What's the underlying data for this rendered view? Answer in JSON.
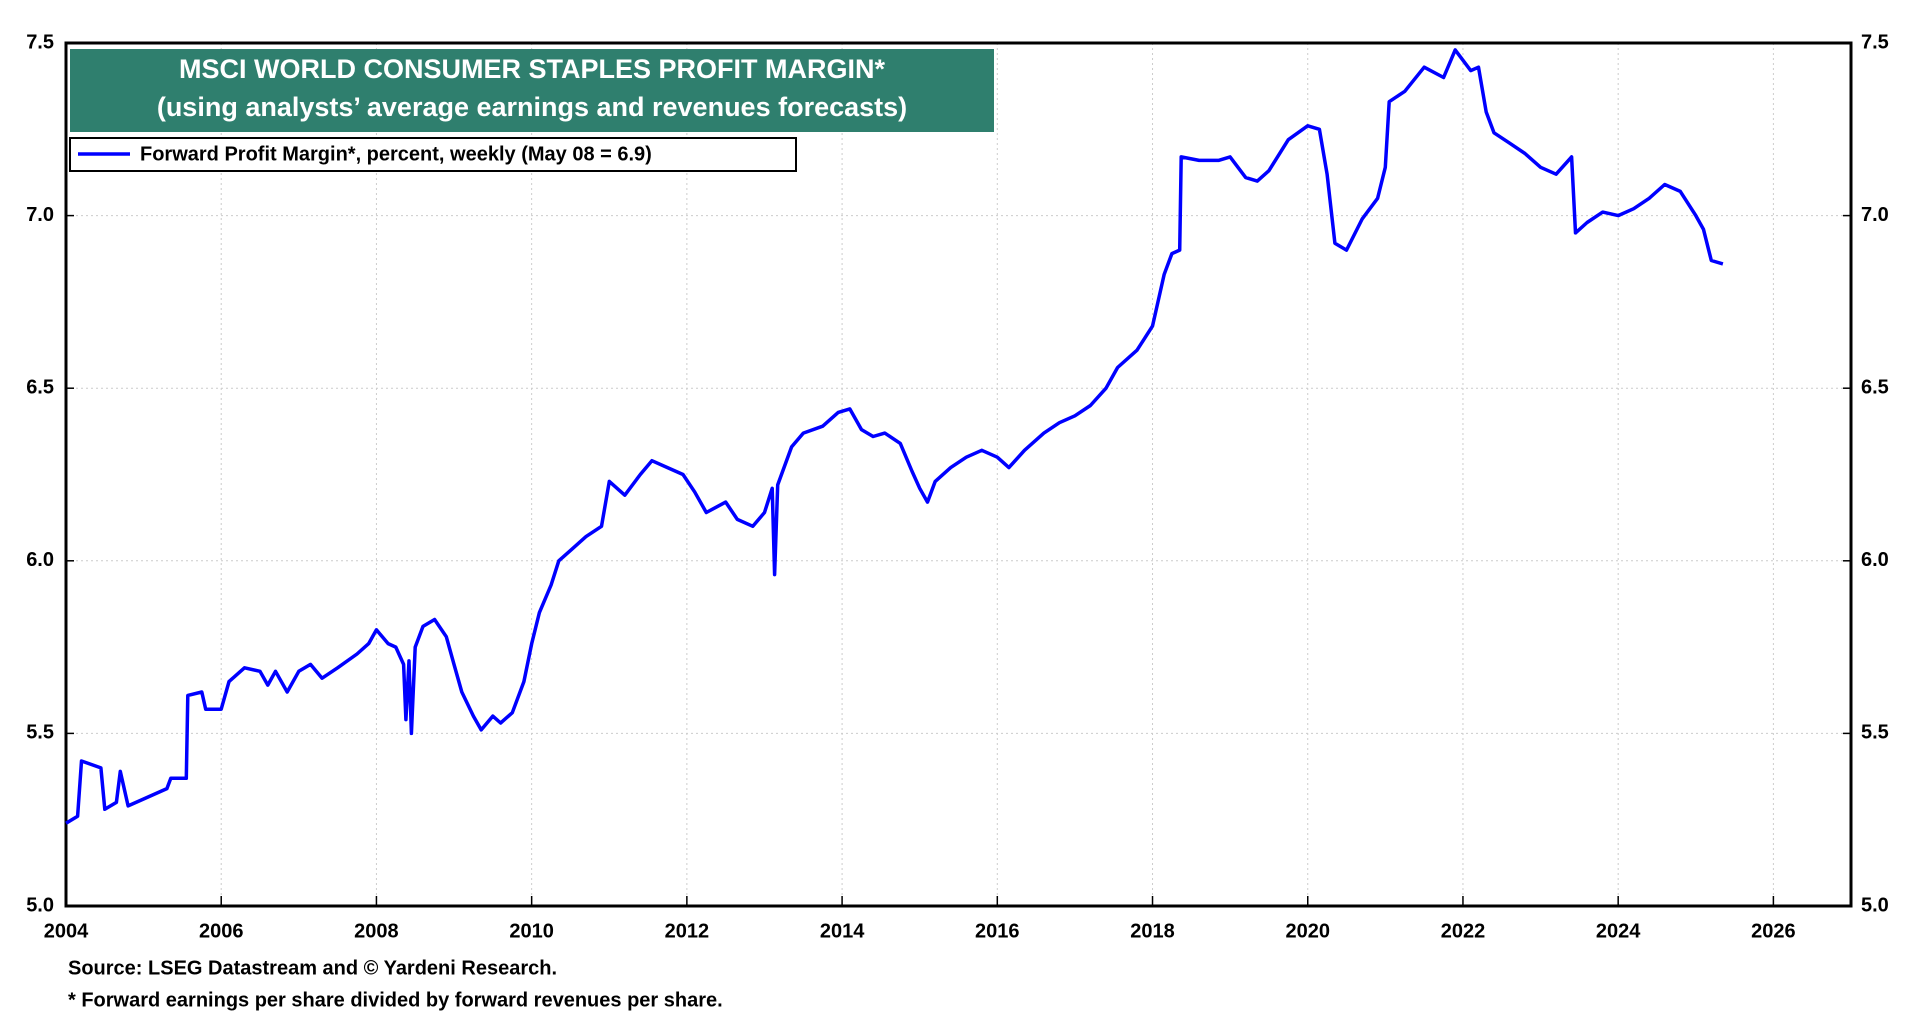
{
  "chart_data": {
    "type": "line",
    "title": "MSCI WORLD CONSUMER STAPLES PROFIT MARGIN*",
    "subtitle": "(using analysts’ average earnings and revenues forecasts)",
    "source": "Source: LSEG Datastream and © Yardeni Research.",
    "note": "* Forward earnings per share divided by forward revenues per share.",
    "legend_position": "upper left",
    "grid": true,
    "x": [
      2004.0,
      2004.15,
      2004.2,
      2004.45,
      2004.5,
      2004.65,
      2004.7,
      2004.8,
      2005.0,
      2005.3,
      2005.35,
      2005.55,
      2005.57,
      2005.75,
      2005.8,
      2006.0,
      2006.1,
      2006.3,
      2006.5,
      2006.6,
      2006.7,
      2006.85,
      2007.0,
      2007.15,
      2007.3,
      2007.5,
      2007.75,
      2007.9,
      2008.0,
      2008.15,
      2008.25,
      2008.35,
      2008.38,
      2008.42,
      2008.45,
      2008.5,
      2008.6,
      2008.75,
      2008.9,
      2009.0,
      2009.1,
      2009.25,
      2009.35,
      2009.5,
      2009.6,
      2009.75,
      2009.9,
      2010.0,
      2010.1,
      2010.25,
      2010.35,
      2010.5,
      2010.7,
      2010.9,
      2011.0,
      2011.2,
      2011.4,
      2011.55,
      2011.75,
      2011.95,
      2012.1,
      2012.25,
      2012.5,
      2012.65,
      2012.85,
      2013.0,
      2013.1,
      2013.13,
      2013.17,
      2013.35,
      2013.5,
      2013.75,
      2013.95,
      2014.1,
      2014.25,
      2014.4,
      2014.55,
      2014.75,
      2014.9,
      2015.0,
      2015.1,
      2015.2,
      2015.4,
      2015.6,
      2015.8,
      2016.0,
      2016.15,
      2016.35,
      2016.6,
      2016.8,
      2017.0,
      2017.2,
      2017.4,
      2017.55,
      2017.8,
      2018.0,
      2018.15,
      2018.25,
      2018.35,
      2018.37,
      2018.6,
      2018.85,
      2019.0,
      2019.2,
      2019.35,
      2019.5,
      2019.75,
      2020.0,
      2020.15,
      2020.25,
      2020.35,
      2020.5,
      2020.7,
      2020.9,
      2021.0,
      2021.05,
      2021.25,
      2021.5,
      2021.75,
      2021.9,
      2022.1,
      2022.2,
      2022.3,
      2022.4,
      2022.6,
      2022.8,
      2023.0,
      2023.2,
      2023.4,
      2023.45,
      2023.6,
      2023.8,
      2024.0,
      2024.2,
      2024.4,
      2024.6,
      2024.8,
      2025.0,
      2025.1,
      2025.2,
      2025.35
    ],
    "series": [
      {
        "name": "Forward Profit Margin*, percent, weekly (May 08 = 6.9)",
        "color": "#0000ff",
        "values": [
          5.24,
          5.26,
          5.42,
          5.4,
          5.28,
          5.3,
          5.39,
          5.29,
          5.31,
          5.34,
          5.37,
          5.37,
          5.61,
          5.62,
          5.57,
          5.57,
          5.65,
          5.69,
          5.68,
          5.64,
          5.68,
          5.62,
          5.68,
          5.7,
          5.66,
          5.69,
          5.73,
          5.76,
          5.8,
          5.76,
          5.75,
          5.7,
          5.54,
          5.71,
          5.5,
          5.75,
          5.81,
          5.83,
          5.78,
          5.7,
          5.62,
          5.55,
          5.51,
          5.55,
          5.53,
          5.56,
          5.65,
          5.76,
          5.85,
          5.93,
          6.0,
          6.03,
          6.07,
          6.1,
          6.23,
          6.19,
          6.25,
          6.29,
          6.27,
          6.25,
          6.2,
          6.14,
          6.17,
          6.12,
          6.1,
          6.14,
          6.21,
          5.96,
          6.22,
          6.33,
          6.37,
          6.39,
          6.43,
          6.44,
          6.38,
          6.36,
          6.37,
          6.34,
          6.26,
          6.21,
          6.17,
          6.23,
          6.27,
          6.3,
          6.32,
          6.3,
          6.27,
          6.32,
          6.37,
          6.4,
          6.42,
          6.45,
          6.5,
          6.56,
          6.61,
          6.68,
          6.83,
          6.89,
          6.9,
          7.17,
          7.16,
          7.16,
          7.17,
          7.11,
          7.1,
          7.13,
          7.22,
          7.26,
          7.25,
          7.12,
          6.92,
          6.9,
          6.99,
          7.05,
          7.14,
          7.33,
          7.36,
          7.43,
          7.4,
          7.48,
          7.42,
          7.43,
          7.3,
          7.24,
          7.21,
          7.18,
          7.14,
          7.12,
          7.17,
          6.95,
          6.98,
          7.01,
          7.0,
          7.02,
          7.05,
          7.09,
          7.07,
          7.0,
          6.96,
          6.87,
          6.86
        ]
      }
    ],
    "xlim": [
      2004,
      2027
    ],
    "xticks": [
      2004,
      2006,
      2008,
      2010,
      2012,
      2014,
      2016,
      2018,
      2020,
      2022,
      2024,
      2026
    ],
    "ylim": [
      5,
      7.5
    ],
    "yticks": [
      {
        "value": 5,
        "label": "5.0"
      },
      {
        "value": 5.5,
        "label": "5.5"
      },
      {
        "value": 6,
        "label": "6.0"
      },
      {
        "value": 6.5,
        "label": "6.5"
      },
      {
        "value": 7,
        "label": "7.0"
      },
      {
        "value": 7.5,
        "label": "7.5"
      }
    ]
  }
}
